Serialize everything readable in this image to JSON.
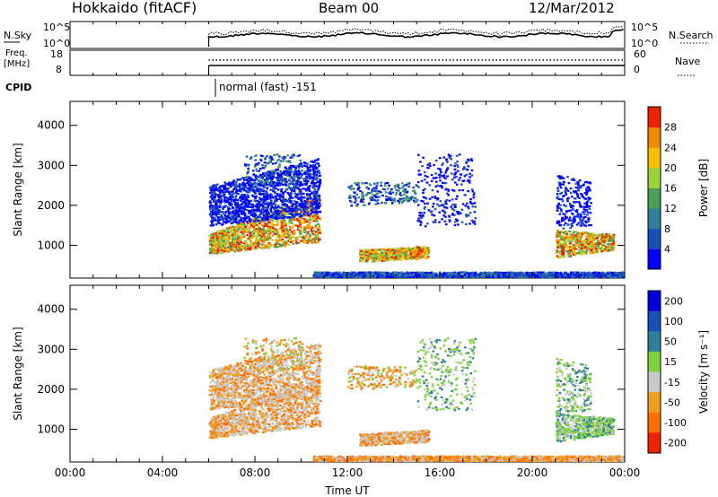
{
  "header": {
    "station": "Hokkaido (fitACF)",
    "beam": "Beam 00",
    "date": "12/Mar/2012"
  },
  "summary": {
    "nsky_label": "N.Sky",
    "nsky_ticks": [
      "10^5",
      "10^0"
    ],
    "nsearch_label": "N.Search",
    "nsearch_ticks": [
      "10^5",
      "10^0"
    ],
    "freq_label": "Freq.",
    "freq_unit": "[MHz]",
    "freq_ticks": [
      "18",
      "8"
    ],
    "nave_label": "Nave",
    "nave_ticks": [
      "60",
      "0"
    ],
    "cpid_label": "CPID",
    "cpid_value": "normal (fast) -151"
  },
  "chart_data": [
    {
      "type": "heatmap",
      "panel": "power",
      "xlabel": "Time UT",
      "ylabel": "Slant Range [km]",
      "ylim": [
        180,
        4600
      ],
      "y_ticks": [
        "1000",
        "2000",
        "3000",
        "4000"
      ],
      "x_ticks": [
        "00:00",
        "04:00",
        "08:00",
        "12:00",
        "16:00",
        "20:00",
        "00:00"
      ],
      "colorbar_label": "Power [dB]",
      "colorbar_ticks": [
        "4",
        "8",
        "12",
        "16",
        "20",
        "24",
        "28"
      ],
      "colorbar_colors": [
        "#0000ff",
        "#1b4fb8",
        "#2f7f9a",
        "#4a9e5a",
        "#9bd23c",
        "#f4c000",
        "#f08a00",
        "#ee2200"
      ],
      "data_start_time": "06:00"
    },
    {
      "type": "heatmap",
      "panel": "velocity",
      "xlabel": "Time UT",
      "ylabel": "Slant Range [km]",
      "ylim": [
        180,
        4600
      ],
      "y_ticks": [
        "1000",
        "2000",
        "3000",
        "4000"
      ],
      "x_ticks": [
        "00:00",
        "04:00",
        "08:00",
        "12:00",
        "16:00",
        "20:00",
        "00:00"
      ],
      "colorbar_label": "Velocity [m s⁻¹]",
      "colorbar_ticks": [
        "200",
        "100",
        "50",
        "15",
        "-15",
        "-50",
        "-100",
        "-200"
      ],
      "colorbar_colors": [
        "#0000dd",
        "#1b4fb8",
        "#2e7f9a",
        "#7dd23c",
        "#c8c8c8",
        "#f0a020",
        "#ff7000",
        "#ee2200"
      ],
      "data_start_time": "06:00"
    }
  ]
}
